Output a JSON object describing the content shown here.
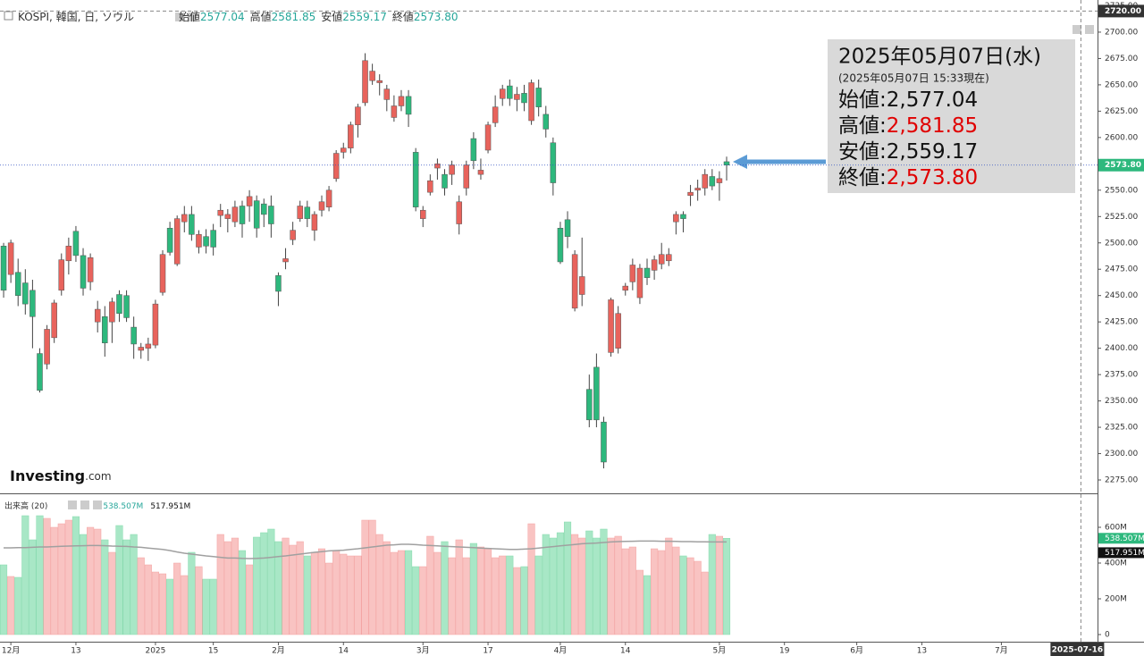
{
  "chart_data": {
    "type": "candlestick",
    "title": "KOSPI, 韓国, 日, ソウル",
    "header": [
      {
        "label": "始値",
        "value": "2577.04"
      },
      {
        "label": "高値",
        "value": "2581.85"
      },
      {
        "label": "安値",
        "value": "2559.17"
      },
      {
        "label": "終値",
        "value": "2573.80"
      }
    ],
    "open": [
      2497,
      2470,
      2472,
      2462,
      2455,
      2395,
      2385,
      2410,
      2455,
      2483,
      2511,
      2488,
      2463,
      2425,
      2430,
      2425,
      2451,
      2450,
      2420,
      2398,
      2400,
      2403,
      2453,
      2514,
      2480,
      2520,
      2527,
      2496,
      2506,
      2512,
      2526,
      2523,
      2520,
      2535,
      2535,
      2540,
      2537,
      2535,
      2469,
      2482,
      2503,
      2523,
      2534,
      2512,
      2531,
      2534,
      2561,
      2586,
      2590,
      2612,
      2633,
      2654,
      2652,
      2636,
      2619,
      2630,
      2639,
      2586,
      2523,
      2548,
      2571,
      2565,
      2565,
      2518,
      2552,
      2599,
      2565,
      2588,
      2614,
      2637,
      2649,
      2636,
      2642,
      2616,
      2647,
      2622,
      2595,
      2514,
      2522,
      2438,
      2451,
      2361,
      2382,
      2330,
      2396,
      2400,
      2455,
      2463,
      2448,
      2476,
      2474,
      2480,
      2483,
      2520,
      2527,
      2545,
      2550,
      2552,
      2563,
      2557,
      2577.04
    ],
    "high": [
      2500,
      2503,
      2485,
      2475,
      2465,
      2400,
      2422,
      2446,
      2490,
      2505,
      2516,
      2495,
      2490,
      2445,
      2440,
      2448,
      2455,
      2455,
      2430,
      2405,
      2410,
      2446,
      2493,
      2520,
      2526,
      2535,
      2535,
      2512,
      2513,
      2518,
      2537,
      2532,
      2540,
      2540,
      2550,
      2545,
      2542,
      2545,
      2472,
      2495,
      2520,
      2540,
      2540,
      2530,
      2545,
      2554,
      2588,
      2595,
      2615,
      2632,
      2680,
      2670,
      2660,
      2650,
      2640,
      2645,
      2645,
      2590,
      2535,
      2565,
      2580,
      2570,
      2578,
      2545,
      2578,
      2605,
      2580,
      2615,
      2640,
      2650,
      2655,
      2648,
      2650,
      2655,
      2655,
      2630,
      2600,
      2520,
      2530,
      2493,
      2505,
      2375,
      2395,
      2335,
      2448,
      2440,
      2462,
      2485,
      2480,
      2485,
      2488,
      2500,
      2495,
      2530,
      2530,
      2555,
      2560,
      2570,
      2570,
      2568,
      2581.85
    ],
    "low": [
      2448,
      2462,
      2440,
      2432,
      2400,
      2358,
      2380,
      2405,
      2450,
      2470,
      2482,
      2450,
      2455,
      2415,
      2392,
      2405,
      2425,
      2425,
      2390,
      2390,
      2388,
      2400,
      2450,
      2488,
      2478,
      2510,
      2502,
      2490,
      2490,
      2488,
      2515,
      2510,
      2515,
      2505,
      2520,
      2505,
      2515,
      2505,
      2440,
      2475,
      2498,
      2520,
      2515,
      2502,
      2525,
      2530,
      2558,
      2580,
      2585,
      2600,
      2630,
      2650,
      2640,
      2625,
      2615,
      2625,
      2610,
      2530,
      2515,
      2545,
      2560,
      2545,
      2555,
      2508,
      2545,
      2570,
      2560,
      2585,
      2610,
      2630,
      2630,
      2625,
      2625,
      2612,
      2620,
      2600,
      2545,
      2480,
      2495,
      2435,
      2440,
      2325,
      2325,
      2286,
      2392,
      2395,
      2450,
      2455,
      2442,
      2460,
      2465,
      2475,
      2478,
      2508,
      2510,
      2535,
      2540,
      2545,
      2550,
      2540,
      2559.17
    ],
    "close": [
      2455,
      2500,
      2450,
      2442,
      2430,
      2360,
      2418,
      2443,
      2484,
      2497,
      2488,
      2457,
      2486,
      2437,
      2405,
      2444,
      2433,
      2429,
      2404,
      2401,
      2404,
      2442,
      2489,
      2491,
      2523,
      2527,
      2508,
      2508,
      2497,
      2496,
      2531,
      2527,
      2534,
      2518,
      2544,
      2514,
      2527,
      2518,
      2454,
      2485,
      2512,
      2535,
      2523,
      2527,
      2539,
      2550,
      2585,
      2590,
      2612,
      2629,
      2673,
      2663,
      2654,
      2646,
      2630,
      2639,
      2622,
      2534,
      2531,
      2559,
      2575,
      2552,
      2574,
      2539,
      2574,
      2578,
      2569,
      2612,
      2629,
      2646,
      2637,
      2641,
      2633,
      2652,
      2629,
      2608,
      2557,
      2482,
      2506,
      2489,
      2468,
      2332,
      2332,
      2292,
      2446,
      2433,
      2459,
      2479,
      2476,
      2467,
      2484,
      2489,
      2489,
      2527,
      2523,
      2548,
      2552,
      2565,
      2554,
      2561,
      2573.8
    ],
    "up_color": "#e8635c",
    "down_color": "#2db87d",
    "xlim": [
      -0.5,
      151.3
    ],
    "ylim": [
      2262.3,
      2730.5
    ],
    "xticks": [
      {
        "value": 1,
        "label": "12月"
      },
      {
        "value": 10,
        "label": "13"
      },
      {
        "value": 21,
        "label": "2025"
      },
      {
        "value": 29,
        "label": "15"
      },
      {
        "value": 38,
        "label": "2月"
      },
      {
        "value": 47,
        "label": "14"
      },
      {
        "value": 58,
        "label": "3月"
      },
      {
        "value": 67,
        "label": "17"
      },
      {
        "value": 77,
        "label": "4月"
      },
      {
        "value": 86,
        "label": "14"
      },
      {
        "value": 99,
        "label": "5月"
      },
      {
        "value": 108,
        "label": "19"
      },
      {
        "value": 118,
        "label": "6月"
      },
      {
        "value": 127,
        "label": "13"
      },
      {
        "value": 138,
        "label": "7月"
      }
    ],
    "yticks": [
      {
        "value": 2275,
        "label": "2275.00"
      },
      {
        "value": 2300,
        "label": "2300.00"
      },
      {
        "value": 2325,
        "label": "2325.00"
      },
      {
        "value": 2350,
        "label": "2350.00"
      },
      {
        "value": 2375,
        "label": "2375.00"
      },
      {
        "value": 2400,
        "label": "2400.00"
      },
      {
        "value": 2425,
        "label": "2425.00"
      },
      {
        "value": 2450,
        "label": "2450.00"
      },
      {
        "value": 2475,
        "label": "2475.00"
      },
      {
        "value": 2500,
        "label": "2500.00"
      },
      {
        "value": 2525,
        "label": "2525.00"
      },
      {
        "value": 2550,
        "label": "2550.00"
      },
      {
        "value": 2575,
        "label": "2575.00"
      },
      {
        "value": 2600,
        "label": "2600.00"
      },
      {
        "value": 2625,
        "label": "2625.00"
      },
      {
        "value": 2650,
        "label": "2650.00"
      },
      {
        "value": 2675,
        "label": "2675.00"
      },
      {
        "value": 2700,
        "label": "2700.00"
      },
      {
        "value": 2725,
        "label": "2725.00"
      }
    ],
    "last_label": "2573.80",
    "cursor": {
      "price": 2720,
      "price_label": "2720.00",
      "x": 149,
      "date_label": "2025-07-16"
    },
    "tooltip": {
      "date": "2025年05月07日(水)",
      "note": "(2025年05月07日 15:33現在)",
      "rows": [
        {
          "label": "始値:",
          "value": "2,577.04",
          "color": "#111111"
        },
        {
          "label": "高値:",
          "value": "2,581.85",
          "color": "#e00000"
        },
        {
          "label": "安値:",
          "value": "2,559.17",
          "color": "#111111"
        },
        {
          "label": "終値:",
          "value": "2,573.80",
          "color": "#e00000"
        }
      ]
    },
    "watermark": {
      "brand": "Investing",
      "suffix": ".com"
    },
    "volume": {
      "name": "出来高 (20)",
      "ylim": [
        -40,
        785
      ],
      "yticks": [
        {
          "value": 0,
          "label": "0"
        },
        {
          "value": 200,
          "label": "200M"
        },
        {
          "value": 400,
          "label": "400M"
        },
        {
          "value": 600,
          "label": "600M"
        }
      ],
      "up_color": "#f9c3c2",
      "down_color": "#a8e7c6",
      "ma_color": "#a0a0a0",
      "values": [
        390,
        325,
        320,
        665,
        530,
        665,
        650,
        600,
        620,
        640,
        660,
        560,
        600,
        590,
        530,
        460,
        610,
        530,
        560,
        430,
        390,
        350,
        340,
        310,
        400,
        330,
        460,
        380,
        310,
        310,
        560,
        520,
        540,
        470,
        390,
        545,
        570,
        590,
        520,
        540,
        500,
        520,
        440,
        460,
        480,
        400,
        470,
        450,
        440,
        440,
        640,
        640,
        560,
        520,
        460,
        470,
        470,
        380,
        380,
        550,
        460,
        520,
        430,
        530,
        430,
        510,
        490,
        480,
        430,
        440,
        440,
        375,
        380,
        620,
        440,
        560,
        540,
        570,
        630,
        560,
        540,
        580,
        540,
        590,
        540,
        550,
        480,
        490,
        360,
        330,
        480,
        470,
        540,
        490,
        440,
        430,
        410,
        350,
        560,
        550,
        538.507
      ],
      "ma": [
        485,
        485,
        486,
        486,
        488,
        490,
        490,
        492,
        494,
        495,
        496,
        497,
        498,
        498,
        497,
        495,
        494,
        493,
        490,
        488,
        484,
        480,
        476,
        470,
        462,
        455,
        450,
        445,
        440,
        436,
        432,
        428,
        428,
        426,
        425,
        426,
        428,
        432,
        436,
        440,
        445,
        450,
        455,
        460,
        464,
        468,
        470,
        472,
        476,
        480,
        485,
        490,
        495,
        500,
        502,
        505,
        505,
        503,
        500,
        498,
        496,
        494,
        492,
        490,
        488,
        486,
        484,
        482,
        480,
        478,
        476,
        476,
        478,
        480,
        484,
        488,
        492,
        496,
        500,
        504,
        508,
        510,
        512,
        515,
        518,
        520,
        521,
        522,
        523,
        523,
        523,
        522,
        522,
        521,
        520,
        520,
        519,
        519,
        518,
        518,
        517.951
      ],
      "last_label": "538.507M",
      "ma_label": "517.951M"
    }
  }
}
